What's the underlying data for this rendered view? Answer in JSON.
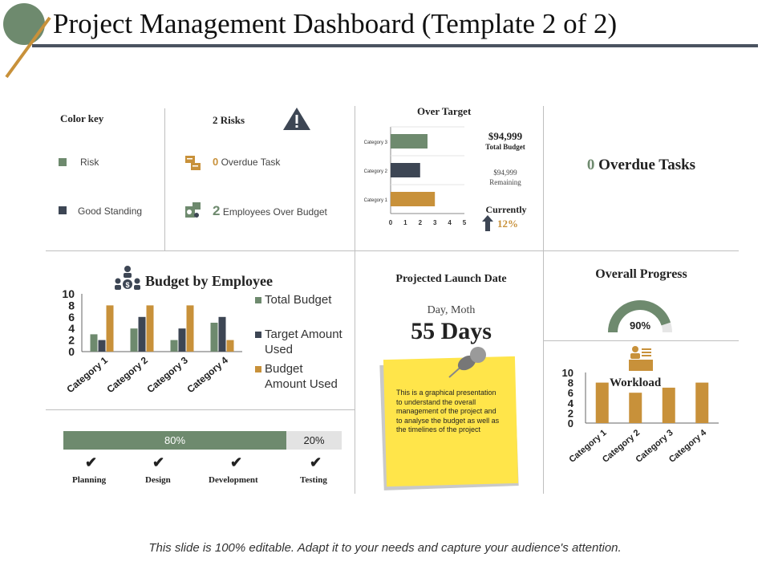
{
  "header": {
    "title": "Project Management Dashboard (Template 2 of 2)"
  },
  "color_key": {
    "title": "Color key",
    "items": [
      {
        "label": "Risk",
        "color": "#6e8a6e"
      },
      {
        "label": "Good Standing",
        "color": "#3d4654"
      }
    ]
  },
  "risks": {
    "title": "2 Risks",
    "items": [
      {
        "count": "0",
        "label": "Overdue Task"
      },
      {
        "count": "2",
        "label": "Employees Over Budget"
      }
    ]
  },
  "over_target": {
    "title": "Over Target",
    "total_amount": "$94,999",
    "total_label": "Total Budget",
    "remaining_amount": "$94,999",
    "remaining_label": "Remaining",
    "currently_label": "Currently",
    "currently_value": "12%"
  },
  "overdue": {
    "count": "0",
    "label": "Overdue Tasks"
  },
  "budget": {
    "title": "Budget by Employee"
  },
  "launch": {
    "title": "Projected Launch Date",
    "subtitle": "Day, Moth",
    "value": "55 Days",
    "note": "This is a graphical presentation to understand the overall management of the project and to analyse the budget as well as the timelines of the project"
  },
  "overall_progress": {
    "title": "Overall Progress",
    "value": 90,
    "label": "90%"
  },
  "progress_bar": {
    "segments": [
      {
        "label": "80%",
        "value": 80
      },
      {
        "label": "20%",
        "value": 20
      }
    ],
    "phases": [
      "Planning",
      "Design",
      "Development",
      "Testing"
    ]
  },
  "workload": {
    "title": "Workload"
  },
  "footer": {
    "text": "This slide is 100% editable. Adapt it to your needs and capture your audience's attention."
  },
  "colors": {
    "green": "#6e8a6e",
    "navy": "#3d4654",
    "orange": "#c8913a",
    "yellow": "#ffe54a"
  },
  "chart_data": [
    {
      "type": "bar",
      "orientation": "horizontal",
      "title": "Over Target",
      "categories": [
        "Category 1",
        "Category 2",
        "Category 3"
      ],
      "values": [
        3,
        2,
        2.5
      ],
      "colors": [
        "#c8913a",
        "#3d4654",
        "#6e8a6e"
      ],
      "xlim": [
        0,
        5
      ],
      "xticks": [
        "0",
        "1",
        "2",
        "3",
        "4",
        "5"
      ]
    },
    {
      "type": "bar",
      "title": "Budget by Employee",
      "categories": [
        "Category 1",
        "Category 2",
        "Category 3",
        "Category 4"
      ],
      "series": [
        {
          "name": "Total Budget",
          "values": [
            3,
            4,
            2,
            5
          ],
          "color": "#6e8a6e"
        },
        {
          "name": "Target Amount Used",
          "values": [
            2,
            6,
            4,
            6
          ],
          "color": "#3d4654"
        },
        {
          "name": "Budget Amount Used",
          "values": [
            8,
            8,
            8,
            2
          ],
          "color": "#c8913a"
        }
      ],
      "ylim": [
        0,
        10
      ],
      "yticks": [
        "0",
        "2",
        "4",
        "6",
        "8",
        "10"
      ]
    },
    {
      "type": "bar",
      "title": "Workload",
      "categories": [
        "Category 1",
        "Category 2",
        "Category 3",
        "Category 4"
      ],
      "values": [
        8,
        6,
        7,
        8
      ],
      "color": "#c8913a",
      "ylim": [
        0,
        10
      ],
      "yticks": [
        "0",
        "2",
        "4",
        "6",
        "8",
        "10"
      ]
    }
  ]
}
